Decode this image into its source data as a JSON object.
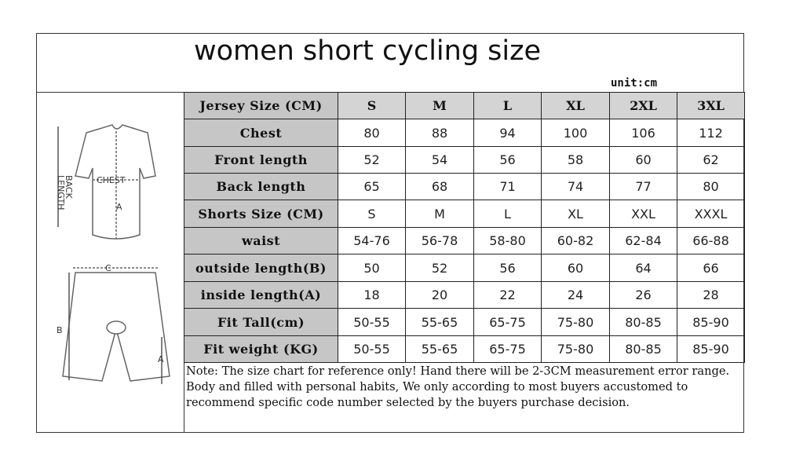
{
  "title": "women short cycling size",
  "unit": "unit:cm",
  "diagram": {
    "jersey": {
      "chest": "CHEST",
      "back_length": [
        "BACK",
        "LENGTH"
      ],
      "a": "A"
    },
    "shorts": {
      "c": "C",
      "b": "B",
      "a": "A"
    }
  },
  "table": {
    "rows": [
      [
        "Jersey Size (CM)",
        "S",
        "M",
        "L",
        "XL",
        "2XL",
        "3XL"
      ],
      [
        "Chest",
        "80",
        "88",
        "94",
        "100",
        "106",
        "112"
      ],
      [
        "Front length",
        "52",
        "54",
        "56",
        "58",
        "60",
        "62"
      ],
      [
        "Back length",
        "65",
        "68",
        "71",
        "74",
        "77",
        "80"
      ],
      [
        "Shorts Size (CM)",
        "S",
        "M",
        "L",
        "XL",
        "XXL",
        "XXXL"
      ],
      [
        "waist",
        "54-76",
        "56-78",
        "58-80",
        "60-82",
        "62-84",
        "66-88"
      ],
      [
        "outside length(B)",
        "50",
        "52",
        "56",
        "60",
        "64",
        "66"
      ],
      [
        "inside length(A)",
        "18",
        "20",
        "22",
        "24",
        "26",
        "28"
      ],
      [
        "Fit Tall(cm)",
        "50-55",
        "55-65",
        "65-75",
        "75-80",
        "80-85",
        "85-90"
      ],
      [
        "Fit weight (KG)",
        "50-55",
        "55-65",
        "65-75",
        "75-80",
        "80-85",
        "85-90"
      ]
    ],
    "note": "Note: The size chart for reference only! Hand there will be 2-3CM measurement error range. Body and filled with personal habits, We only according to most buyers accustomed to recommend specific code number selected by the buyers purchase decision."
  }
}
